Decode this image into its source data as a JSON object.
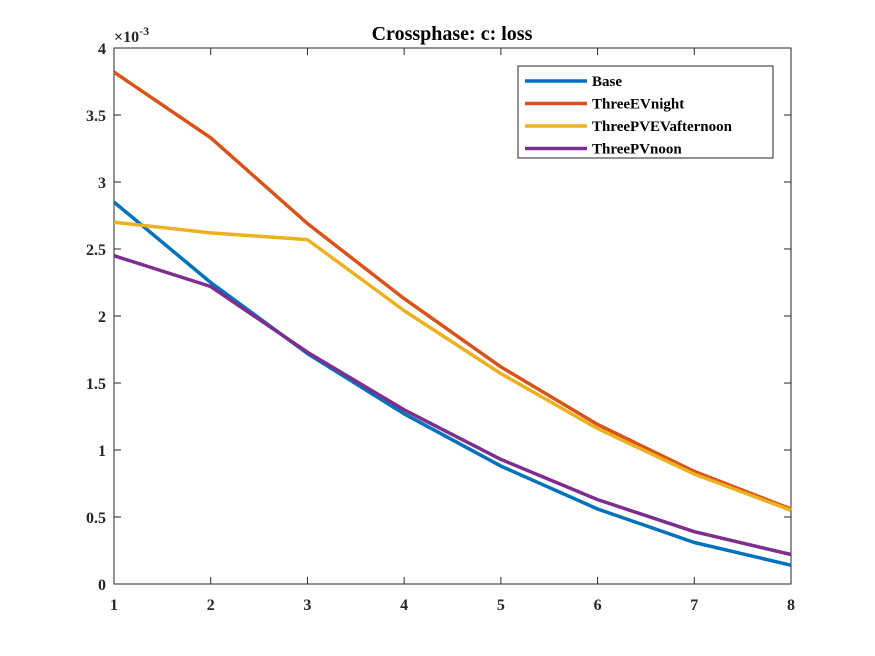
{
  "chart_data": {
    "type": "line",
    "title": "Crossphase: c: loss",
    "xlabel": "",
    "ylabel": "",
    "xlim": [
      1,
      8
    ],
    "ylim": [
      0,
      4
    ],
    "x": [
      1,
      2,
      3,
      4,
      5,
      6,
      7,
      8
    ],
    "x_ticks": [
      "1",
      "2",
      "3",
      "4",
      "5",
      "6",
      "7",
      "8"
    ],
    "y_ticks": [
      "0",
      "0.5",
      "1",
      "1.5",
      "2",
      "2.5",
      "3",
      "3.5",
      "4"
    ],
    "y_multiplier_base": "×10",
    "y_multiplier_exp": "-3",
    "grid": false,
    "legend_position": "top-right",
    "series": [
      {
        "name": "Base",
        "color": "#0072BD",
        "values": [
          2.85,
          2.25,
          1.72,
          1.27,
          0.88,
          0.56,
          0.31,
          0.14
        ]
      },
      {
        "name": "ThreeEVnight",
        "color": "#D95319",
        "values": [
          3.82,
          3.33,
          2.69,
          2.13,
          1.62,
          1.19,
          0.84,
          0.56
        ]
      },
      {
        "name": "ThreePVEVafternoon",
        "color": "#EDB120",
        "values": [
          2.7,
          2.62,
          2.57,
          2.04,
          1.57,
          1.16,
          0.82,
          0.55
        ]
      },
      {
        "name": "ThreePVnoon",
        "color": "#7E2F8E",
        "values": [
          2.45,
          2.22,
          1.73,
          1.3,
          0.93,
          0.63,
          0.39,
          0.22
        ]
      }
    ]
  }
}
